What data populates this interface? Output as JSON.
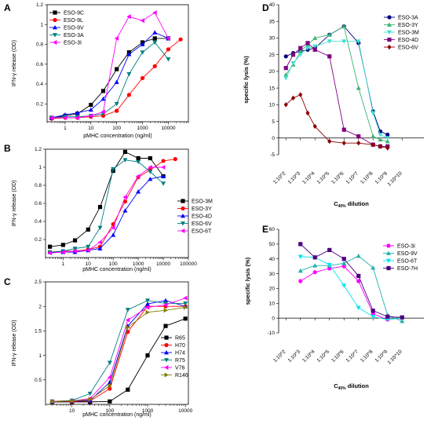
{
  "chart_data": [
    {
      "id": "A",
      "panel_label": "A",
      "type": "line",
      "xscale": "log",
      "xlim": [
        0.2,
        60000
      ],
      "ylim": [
        0.02,
        1.2
      ],
      "xticks": [
        1,
        10,
        100,
        1000,
        10000
      ],
      "yticks": [
        0.2,
        0.4,
        0.6,
        0.8,
        1.0,
        1.2
      ],
      "xlabel": "pMHC concentration (ng/ml)",
      "ylabel": "IFN-γ release (OD)",
      "legend_position": "top-left",
      "series": [
        {
          "name": "ESO-9C",
          "color": "#000000",
          "marker": "square",
          "x": [
            0.3,
            1,
            3,
            10,
            30,
            100,
            300,
            1000,
            3000,
            10000
          ],
          "y": [
            0.06,
            0.08,
            0.1,
            0.19,
            0.33,
            0.55,
            0.72,
            0.82,
            0.86,
            0.86
          ]
        },
        {
          "name": "ESO-9L",
          "color": "#ff0000",
          "marker": "circle",
          "x": [
            0.3,
            1,
            3,
            10,
            30,
            100,
            300,
            1000,
            3000,
            10000,
            30000
          ],
          "y": [
            0.05,
            0.06,
            0.06,
            0.07,
            0.08,
            0.13,
            0.29,
            0.46,
            0.58,
            0.75,
            0.85
          ]
        },
        {
          "name": "ESO-9V",
          "color": "#0000ff",
          "marker": "triangle-up",
          "x": [
            0.3,
            1,
            3,
            10,
            30,
            100,
            300,
            1000,
            3000,
            10000
          ],
          "y": [
            0.06,
            0.09,
            0.11,
            0.14,
            0.25,
            0.42,
            0.7,
            0.8,
            0.92,
            0.86
          ]
        },
        {
          "name": "ESO-3A",
          "color": "#008080",
          "marker": "triangle-down",
          "x": [
            0.3,
            1,
            3,
            10,
            30,
            100,
            300,
            1000,
            3000,
            10000
          ],
          "y": [
            0.06,
            0.07,
            0.07,
            0.08,
            0.1,
            0.2,
            0.5,
            0.72,
            0.82,
            0.65
          ]
        },
        {
          "name": "ESO-3I",
          "color": "#ff00ff",
          "marker": "triangle-left",
          "x": [
            0.3,
            1,
            3,
            10,
            30,
            100,
            300,
            1000,
            3000,
            10000
          ],
          "y": [
            0.06,
            0.06,
            0.06,
            0.08,
            0.12,
            0.86,
            1.08,
            1.04,
            1.12,
            0.86
          ]
        }
      ]
    },
    {
      "id": "B",
      "panel_label": "B",
      "type": "line",
      "xscale": "log",
      "xlim": [
        0.2,
        100000
      ],
      "ylim": [
        0,
        1.2
      ],
      "xticks": [
        1,
        10,
        100,
        1000,
        10000,
        100000
      ],
      "yticks": [
        0.2,
        0.4,
        0.6,
        0.8,
        1.0,
        1.2
      ],
      "xlabel": "pMHC concentration (ng/ml)",
      "ylabel": "IFN-γ release (OD)",
      "legend_position": "bottom-right",
      "series": [
        {
          "name": "ESO-3M",
          "color": "#000000",
          "marker": "square",
          "x": [
            0.3,
            1,
            3,
            10,
            30,
            100,
            300,
            1000,
            3000,
            10000
          ],
          "y": [
            0.12,
            0.14,
            0.19,
            0.31,
            0.56,
            0.96,
            1.17,
            1.1,
            1.1,
            0.9
          ]
        },
        {
          "name": "ESO-3Y",
          "color": "#ff0000",
          "marker": "circle",
          "x": [
            0.3,
            1,
            3,
            10,
            30,
            100,
            300,
            1000,
            3000,
            10000,
            30000
          ],
          "y": [
            0.06,
            0.07,
            0.07,
            0.09,
            0.12,
            0.37,
            0.62,
            0.89,
            0.97,
            1.07,
            1.09
          ]
        },
        {
          "name": "ESO-4D",
          "color": "#0000ff",
          "marker": "triangle-up",
          "x": [
            0.3,
            1,
            3,
            10,
            30,
            100,
            300,
            1000,
            3000,
            10000
          ],
          "y": [
            0.06,
            0.06,
            0.06,
            0.08,
            0.1,
            0.25,
            0.52,
            0.73,
            0.87,
            0.9
          ]
        },
        {
          "name": "ESO-6V",
          "color": "#008080",
          "marker": "triangle-down",
          "x": [
            0.3,
            1,
            3,
            10,
            30,
            100,
            300,
            1000,
            3000,
            10000
          ],
          "y": [
            0.06,
            0.07,
            0.1,
            0.12,
            0.33,
            0.98,
            1.08,
            1.06,
            0.95,
            0.82
          ]
        },
        {
          "name": "ESO-6T",
          "color": "#ff00ff",
          "marker": "triangle-left",
          "x": [
            0.3,
            1,
            3,
            10,
            30,
            100,
            300,
            1000,
            3000,
            10000
          ],
          "y": [
            0.05,
            0.06,
            0.07,
            0.08,
            0.17,
            0.33,
            0.67,
            0.9,
            1.0,
            1.0
          ]
        }
      ]
    },
    {
      "id": "C",
      "panel_label": "C",
      "type": "line",
      "xscale": "log",
      "xlim": [
        2,
        12000
      ],
      "ylim": [
        0,
        2.5
      ],
      "xticks": [
        10,
        100,
        1000,
        10000
      ],
      "yticks": [
        0.5,
        1.0,
        1.5,
        2.0,
        2.5
      ],
      "xlabel": "pMHC concentration (ng/ml)",
      "ylabel": "IFN-γ release (OD)",
      "legend_position": "bottom-right",
      "series": [
        {
          "name": "R65",
          "color": "#000000",
          "marker": "square",
          "x": [
            3,
            10,
            30,
            100,
            300,
            1000,
            3000,
            10000
          ],
          "y": [
            0.05,
            0.05,
            0.05,
            0.06,
            0.3,
            1.0,
            1.6,
            1.75
          ]
        },
        {
          "name": "H70",
          "color": "#ff0000",
          "marker": "circle",
          "x": [
            3,
            10,
            30,
            100,
            300,
            1000,
            3000,
            10000
          ],
          "y": [
            0.06,
            0.06,
            0.07,
            0.32,
            1.48,
            2.0,
            2.0,
            2.0
          ]
        },
        {
          "name": "H74",
          "color": "#0000ff",
          "marker": "triangle-up",
          "x": [
            3,
            10,
            30,
            100,
            300,
            1000,
            3000,
            10000
          ],
          "y": [
            0.06,
            0.07,
            0.08,
            0.45,
            1.6,
            2.05,
            2.12,
            2.0
          ]
        },
        {
          "name": "R75",
          "color": "#008080",
          "marker": "triangle-down",
          "x": [
            3,
            10,
            30,
            100,
            300,
            1000,
            3000,
            10000
          ],
          "y": [
            0.06,
            0.08,
            0.22,
            0.85,
            1.93,
            2.12,
            2.06,
            2.06
          ]
        },
        {
          "name": "V76",
          "color": "#ff00ff",
          "marker": "triangle-left",
          "x": [
            3,
            10,
            30,
            100,
            300,
            1000,
            3000,
            10000
          ],
          "y": [
            0.06,
            0.07,
            0.12,
            0.55,
            1.72,
            1.98,
            2.03,
            2.17
          ]
        },
        {
          "name": "R146",
          "color": "#808000",
          "marker": "triangle-right",
          "x": [
            3,
            10,
            30,
            100,
            300,
            1000,
            3000,
            10000
          ],
          "y": [
            0.06,
            0.07,
            0.1,
            0.38,
            1.57,
            1.88,
            1.92,
            1.98
          ]
        }
      ]
    },
    {
      "id": "D",
      "panel_label": "D",
      "type": "line",
      "xscale": "categorical",
      "categories": [
        "1:10^2",
        "1:10^3",
        "1:10^4",
        "1:10^5",
        "1:10^6",
        "1:10^7",
        "1:10^8",
        "1:10^9",
        "1:10^10"
      ],
      "ylim": [
        -5,
        40
      ],
      "yticks": [
        -5,
        0,
        5,
        10,
        15,
        20,
        25,
        30,
        35,
        40
      ],
      "xlabel_main": "C",
      "xlabel_sub": "40%",
      "xlabel_tail": " dilution",
      "ylabel": "specific lysis (%)",
      "legend_position": "top-right",
      "series": [
        {
          "name": "ESO-3A",
          "color": "#000080",
          "marker": "circle",
          "x": [
            0,
            0.5,
            1,
            1.5,
            2,
            3,
            4,
            5,
            6,
            6.5,
            7
          ],
          "y": [
            24.5,
            25.5,
            26,
            26.5,
            27,
            31,
            33.5,
            28.5,
            8,
            2,
            1
          ]
        },
        {
          "name": "ESO-3Y",
          "color": "#3cb371",
          "marker": "triangle-up",
          "x": [
            0,
            0.5,
            1,
            1.5,
            2,
            3,
            4,
            5,
            6,
            6.5,
            7
          ],
          "y": [
            19,
            22,
            26,
            28,
            30,
            31,
            33.5,
            15,
            0.5,
            -0.5,
            -1
          ]
        },
        {
          "name": "ESO-3M",
          "color": "#40e0d0",
          "marker": "triangle-down",
          "x": [
            0,
            0.5,
            1,
            1.5,
            2,
            3,
            4,
            5,
            6,
            6.5,
            7
          ],
          "y": [
            18,
            22.5,
            25,
            27,
            27.5,
            29,
            29,
            29,
            7.5,
            1,
            0
          ]
        },
        {
          "name": "ESO-4D",
          "color": "#800080",
          "marker": "square",
          "x": [
            0,
            0.5,
            1,
            1.5,
            2,
            3,
            4,
            5,
            6,
            6.5,
            7
          ],
          "y": [
            21,
            25,
            27,
            28.5,
            26.5,
            24.5,
            2.5,
            0.5,
            -2,
            -2.5,
            -2.5
          ]
        },
        {
          "name": "ESO-6V",
          "color": "#8b0000",
          "marker": "diamond",
          "x": [
            0,
            0.5,
            1,
            1.5,
            2,
            3,
            4,
            5,
            6,
            6.5,
            7
          ],
          "y": [
            10,
            12,
            13,
            7.5,
            3.5,
            -1,
            -1.5,
            -1.5,
            -2,
            -2.5,
            -3
          ]
        }
      ]
    },
    {
      "id": "E",
      "panel_label": "E",
      "type": "line",
      "xscale": "categorical",
      "categories": [
        "1:10^2",
        "1:10^3",
        "1:10^4",
        "1:10^5",
        "1:10^6",
        "1:10^7",
        "1:10^8",
        "1:10^9",
        "1:10^10"
      ],
      "ylim": [
        -10,
        60
      ],
      "yticks": [
        -10,
        0,
        10,
        20,
        30,
        40,
        50,
        60
      ],
      "xlabel_main": "C",
      "xlabel_sub": "40%",
      "xlabel_tail": " dilution",
      "ylabel": "specific lysis (%)",
      "legend_position": "top-right",
      "series": [
        {
          "name": "ESO-3I",
          "color": "#ff00ff",
          "marker": "circle",
          "x": [
            1,
            2,
            3,
            4,
            5,
            6,
            7
          ],
          "y": [
            25,
            31,
            33.5,
            35,
            25,
            3,
            -1
          ]
        },
        {
          "name": "ESO-9V",
          "color": "#20b2aa",
          "marker": "triangle-up",
          "x": [
            1,
            2,
            3,
            4,
            5,
            6,
            7,
            8
          ],
          "y": [
            32,
            35.5,
            35.5,
            37,
            42,
            34,
            2,
            -2
          ]
        },
        {
          "name": "ESO-6T",
          "color": "#00e5ee",
          "marker": "triangle-down",
          "x": [
            1,
            2,
            3,
            4,
            5,
            6,
            7,
            8
          ],
          "y": [
            41.5,
            41,
            36,
            22,
            7,
            1,
            -1,
            0
          ]
        },
        {
          "name": "ESO-7H",
          "color": "#4b0082",
          "marker": "square",
          "x": [
            1,
            2,
            3,
            4,
            5,
            6,
            7,
            8
          ],
          "y": [
            50,
            41,
            46,
            40,
            28.5,
            5,
            1,
            0.5
          ]
        }
      ]
    }
  ]
}
